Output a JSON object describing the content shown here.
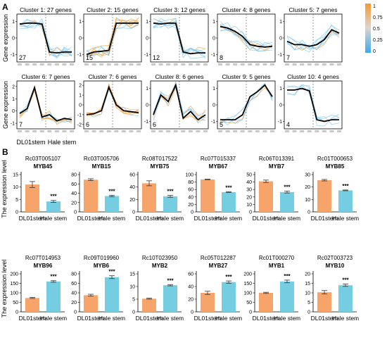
{
  "panels": {
    "a": "A",
    "b": "B"
  },
  "colors": {
    "orange": "#f7a46b",
    "blue": "#74cde0",
    "trend": "#000000",
    "gradient_high": "#f39a2e",
    "gradient_low": "#3ca8ec",
    "thin_line": "#7cc6ee"
  },
  "cluster_plots": {
    "y_label": "Gene expression",
    "group_labels": [
      "DL01stem",
      "Hale stem"
    ],
    "colorbar_ticks": [
      "1",
      "0.75",
      "0.5",
      "0.25",
      "0"
    ],
    "clusters": [
      {
        "title": "Cluster 1: 27 genes",
        "count": "27",
        "trend": [
          0.85,
          0.9,
          0.9,
          0.85,
          -0.85,
          -0.9,
          -0.85,
          -0.85
        ],
        "yticks": [
          "1",
          "0",
          "-1"
        ]
      },
      {
        "title": "Cluster 2: 15 genes",
        "count": "15",
        "trend": [
          -1.0,
          -0.85,
          -0.8,
          -0.75,
          0.9,
          0.9,
          0.9,
          0.9
        ],
        "yticks": [
          "1",
          "0",
          "-1"
        ]
      },
      {
        "title": "Cluster 3: 12 genes",
        "count": "12",
        "trend": [
          0.9,
          0.85,
          0.9,
          0.9,
          -0.85,
          -0.95,
          -0.9,
          -0.9
        ],
        "yticks": [
          "1",
          "0",
          "-1"
        ]
      },
      {
        "title": "Cluster 4: 8 genes",
        "count": "8",
        "trend": [
          0.7,
          0.6,
          0.4,
          0.1,
          -0.4,
          -0.5,
          -0.55,
          -0.5
        ],
        "yticks": [
          "1",
          "0",
          "-1"
        ]
      },
      {
        "title": "Cluster 5: 7 genes",
        "count": "7",
        "trend": [
          -0.2,
          -0.4,
          -0.4,
          -0.5,
          -0.4,
          -0.1,
          0.5,
          0.3
        ],
        "yticks": [
          "1",
          "0",
          "-1"
        ]
      },
      {
        "title": "Cluster 6: 7 genes",
        "count": "7",
        "trend": [
          -0.2,
          0.2,
          1.9,
          -0.5,
          -0.3,
          -0.8,
          -0.6,
          -0.7
        ],
        "yticks": [
          "2",
          "1",
          "0",
          "-1"
        ]
      },
      {
        "title": "Cluster 7: 6 genes",
        "count": "6",
        "trend": [
          -1.0,
          -0.9,
          -0.6,
          1.8,
          0.0,
          -0.6,
          -0.7,
          -0.8
        ],
        "yticks": [
          "2",
          "1",
          "0",
          "-1",
          "-2"
        ]
      },
      {
        "title": "Cluster 8: 6 genes",
        "count": "6",
        "trend": [
          -0.6,
          0.6,
          0.2,
          1.2,
          -0.8,
          -0.4,
          -0.9,
          -0.6
        ],
        "yticks": [
          "1",
          "0",
          "-1"
        ]
      },
      {
        "title": "Cluster 9: 5 genes",
        "count": "5",
        "trend": [
          -0.9,
          -0.9,
          -0.9,
          -0.6,
          0.5,
          0.8,
          1.2,
          0.5
        ],
        "yticks": [
          "1",
          "0",
          "-1"
        ]
      },
      {
        "title": "Cluster 10: 4 genes",
        "count": "4",
        "trend": [
          0.9,
          0.9,
          1.0,
          0.85,
          -0.9,
          -1.0,
          -0.9,
          -0.9
        ],
        "yticks": [
          "1",
          "0",
          "-1"
        ]
      }
    ]
  },
  "chart_data": {
    "type": "bar",
    "ylabel": "The expression level",
    "categories": [
      "DL01stem",
      "Hale stem"
    ],
    "significance": "***",
    "genes": [
      {
        "id": "Rc03T005107",
        "name": "MYB45",
        "values": [
          11,
          4.2
        ],
        "errors": [
          1.2,
          0.4
        ],
        "ymax": 15,
        "yticks": [
          0,
          5,
          10,
          15
        ]
      },
      {
        "id": "Rc03T005706",
        "name": "MYB15",
        "values": [
          69,
          34
        ],
        "errors": [
          2.0,
          1.5
        ],
        "ymax": 80,
        "yticks": [
          0,
          20,
          40,
          60,
          80
        ]
      },
      {
        "id": "Rc08T017522",
        "name": "MYB75",
        "values": [
          46,
          25
        ],
        "errors": [
          4.0,
          1.5
        ],
        "ymax": 60,
        "yticks": [
          0,
          20,
          40,
          60
        ]
      },
      {
        "id": "Rc07T015337",
        "name": "MYB67",
        "values": [
          87,
          53
        ],
        "errors": [
          0.8,
          1.2
        ],
        "ymax": 100,
        "yticks": [
          0,
          20,
          40,
          60,
          80,
          100
        ]
      },
      {
        "id": "Rc06T013391",
        "name": "MYB7",
        "values": [
          41,
          26.5
        ],
        "errors": [
          1.6,
          1.2
        ],
        "ymax": 50,
        "yticks": [
          0,
          10,
          20,
          30,
          40,
          50
        ]
      },
      {
        "id": "Rc01T000653",
        "name": "MYB85",
        "values": [
          25.5,
          17.3
        ],
        "errors": [
          0.6,
          0.3
        ],
        "ymax": 30,
        "yticks": [
          0,
          10,
          20,
          30
        ]
      },
      {
        "id": "Rc07T014953",
        "name": "MYB96",
        "values": [
          73,
          160
        ],
        "errors": [
          2.5,
          4.0
        ],
        "ymax": 200,
        "yticks": [
          0,
          50,
          100,
          150,
          200
        ]
      },
      {
        "id": "Rc09T019960",
        "name": "MYB6",
        "values": [
          35,
          73
        ],
        "errors": [
          2.0,
          3.0
        ],
        "ymax": 80,
        "yticks": [
          0,
          20,
          40,
          60,
          80
        ]
      },
      {
        "id": "Rc10T023950",
        "name": "MYB2",
        "values": [
          5.2,
          10.5
        ],
        "errors": [
          0.2,
          0.25
        ],
        "ymax": 15,
        "yticks": [
          0,
          5,
          10,
          15
        ]
      },
      {
        "id": "Rc05T012287",
        "name": "MYB27",
        "values": [
          30,
          47
        ],
        "errors": [
          2.5,
          1.8
        ],
        "ymax": 60,
        "yticks": [
          0,
          20,
          40,
          60
        ]
      },
      {
        "id": "Rc01T000270",
        "name": "MYB1",
        "values": [
          100,
          160
        ],
        "errors": [
          3.0,
          7.0
        ],
        "ymax": 200,
        "yticks": [
          0,
          50,
          100,
          150,
          200
        ]
      },
      {
        "id": "Rc02T003723",
        "name": "MYB10",
        "values": [
          10.3,
          14
        ],
        "errors": [
          0.9,
          0.6
        ],
        "ymax": 20,
        "yticks": [
          0,
          5,
          10,
          15,
          20
        ]
      }
    ]
  }
}
